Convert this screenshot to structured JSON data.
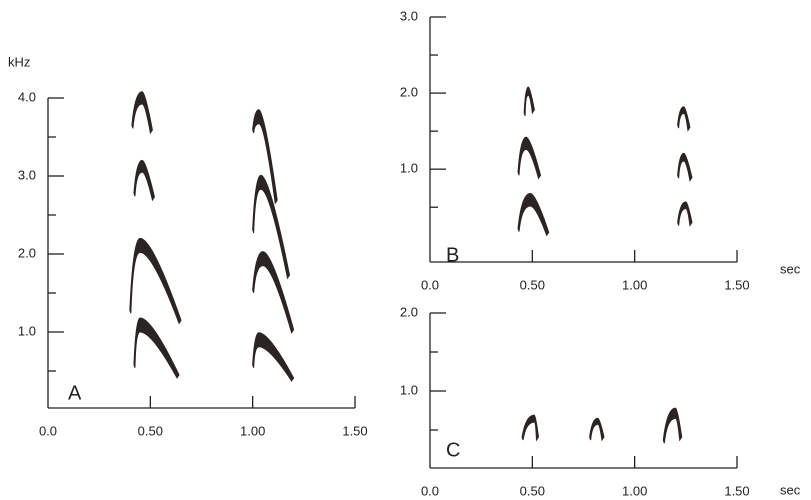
{
  "chart_data": [
    {
      "type": "spectrogram",
      "label": "A",
      "ylabel": "kHz",
      "xlim": [
        0,
        1.5
      ],
      "ylim": [
        0,
        4.0
      ],
      "xticks": [
        {
          "value": 0,
          "label": "0.0"
        },
        {
          "value": 0.5,
          "label": "0.50"
        },
        {
          "value": 1,
          "label": "1.00"
        },
        {
          "value": 1.5,
          "label": "1.50"
        }
      ],
      "yticks": [
        {
          "value": 1,
          "label": "1.0"
        },
        {
          "value": 2,
          "label": "2.0"
        },
        {
          "value": 3,
          "label": "3.0"
        },
        {
          "value": 4,
          "label": "4.0"
        }
      ],
      "yminorticks": [
        0.5,
        1.5,
        2.5,
        3.5
      ],
      "color": "#2a2422",
      "syllables": [
        {
          "x": [
            0.41,
            0.46,
            0.51
          ],
          "y": [
            3.65,
            4.08,
            3.59
          ]
        },
        {
          "x": [
            0.42,
            0.46,
            0.52
          ],
          "y": [
            2.78,
            3.2,
            2.73
          ]
        },
        {
          "x": [
            0.4,
            0.45,
            0.65
          ],
          "y": [
            1.28,
            2.2,
            1.15
          ]
        },
        {
          "x": [
            0.42,
            0.45,
            0.64
          ],
          "y": [
            0.58,
            1.18,
            0.45
          ]
        },
        {
          "x": [
            1.0,
            1.03,
            1.12
          ],
          "y": [
            3.59,
            3.85,
            2.69
          ]
        },
        {
          "x": [
            1.0,
            1.04,
            1.18
          ],
          "y": [
            2.31,
            3.01,
            1.73
          ]
        },
        {
          "x": [
            1.0,
            1.05,
            1.2
          ],
          "y": [
            1.54,
            2.03,
            1.03
          ]
        },
        {
          "x": [
            1.0,
            1.03,
            1.2
          ],
          "y": [
            0.58,
            0.99,
            0.41
          ]
        }
      ]
    },
    {
      "type": "spectrogram",
      "label": "B",
      "xlabel": "sec",
      "xlim": [
        0,
        1.5
      ],
      "ylim": [
        -0.22,
        3.0
      ],
      "xticks": [
        {
          "value": 0,
          "label": "0.0"
        },
        {
          "value": 0.5,
          "label": "0.50"
        },
        {
          "value": 1,
          "label": "1.00"
        },
        {
          "value": 1.5,
          "label": "1.50"
        }
      ],
      "yticks": [
        {
          "value": 1,
          "label": "1.0"
        },
        {
          "value": 2,
          "label": "2.0"
        },
        {
          "value": 3,
          "label": "3.0"
        }
      ],
      "yminorticks": [
        0.5,
        1.5,
        2.5
      ],
      "color": "#2a2422",
      "syllables": [
        {
          "x": [
            0.46,
            0.48,
            0.51
          ],
          "y": [
            1.74,
            2.08,
            1.78
          ]
        },
        {
          "x": [
            0.43,
            0.47,
            0.54
          ],
          "y": [
            0.96,
            1.42,
            0.92
          ]
        },
        {
          "x": [
            0.43,
            0.49,
            0.58
          ],
          "y": [
            0.22,
            0.68,
            0.17
          ]
        },
        {
          "x": [
            1.21,
            1.24,
            1.27
          ],
          "y": [
            1.58,
            1.82,
            1.55
          ]
        },
        {
          "x": [
            1.21,
            1.24,
            1.28
          ],
          "y": [
            0.92,
            1.21,
            0.89
          ]
        },
        {
          "x": [
            1.21,
            1.25,
            1.28
          ],
          "y": [
            0.3,
            0.57,
            0.3
          ]
        }
      ]
    },
    {
      "type": "spectrogram",
      "label": "C",
      "xlabel": "sec",
      "xlim": [
        0,
        1.5
      ],
      "ylim": [
        0,
        2.0
      ],
      "xticks": [
        {
          "value": 0,
          "label": "0.0"
        },
        {
          "value": 0.5,
          "label": "0.50"
        },
        {
          "value": 1,
          "label": "1.00"
        },
        {
          "value": 1.5,
          "label": "1.50"
        }
      ],
      "yticks": [
        {
          "value": 1,
          "label": "1.0"
        },
        {
          "value": 2,
          "label": "2.0"
        }
      ],
      "yminorticks": [
        0.5,
        1.5
      ],
      "color": "#2a2422",
      "syllables": [
        {
          "x": [
            0.45,
            0.51,
            0.53
          ],
          "y": [
            0.41,
            0.69,
            0.41
          ]
        },
        {
          "x": [
            0.78,
            0.82,
            0.85
          ],
          "y": [
            0.41,
            0.65,
            0.41
          ]
        },
        {
          "x": [
            1.14,
            1.2,
            1.23
          ],
          "y": [
            0.37,
            0.78,
            0.41
          ]
        }
      ]
    }
  ]
}
